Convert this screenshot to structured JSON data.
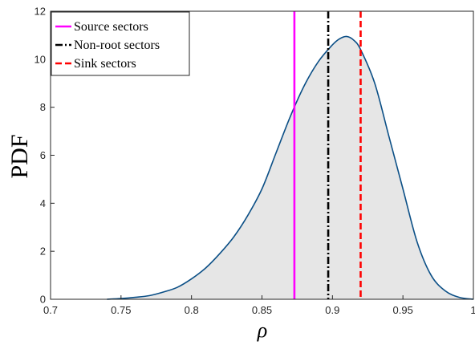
{
  "chart_data": {
    "type": "area",
    "xlabel": "ρ",
    "ylabel": "PDF",
    "xlim": [
      0.7,
      1.0
    ],
    "ylim": [
      0,
      12
    ],
    "x_ticks": [
      "0.7",
      "0.75",
      "0.8",
      "0.85",
      "0.9",
      "0.95",
      "1"
    ],
    "y_ticks": [
      "0",
      "2",
      "4",
      "6",
      "8",
      "10",
      "12"
    ],
    "grid": false,
    "legend_position": "top-left",
    "fill_color": "#e6e6e6",
    "curve_color": "#0b4f86",
    "pdf_curve": {
      "x": [
        0.74,
        0.75,
        0.76,
        0.77,
        0.78,
        0.79,
        0.8,
        0.81,
        0.82,
        0.83,
        0.84,
        0.85,
        0.86,
        0.87,
        0.88,
        0.89,
        0.9,
        0.905,
        0.91,
        0.915,
        0.92,
        0.93,
        0.94,
        0.95,
        0.96,
        0.97,
        0.98,
        0.99,
        1.0
      ],
      "y": [
        0.0,
        0.03,
        0.08,
        0.15,
        0.3,
        0.5,
        0.85,
        1.3,
        1.9,
        2.6,
        3.5,
        4.6,
        6.1,
        7.6,
        8.9,
        9.9,
        10.6,
        10.85,
        10.95,
        10.8,
        10.4,
        9.0,
        6.8,
        4.6,
        2.4,
        1.0,
        0.35,
        0.08,
        0.0
      ]
    },
    "series": [
      {
        "name": "Source sectors",
        "x": 0.873,
        "color": "#ff00ff",
        "style": "solid"
      },
      {
        "name": "Non-root sectors",
        "x": 0.897,
        "color": "#000000",
        "style": "dashdot"
      },
      {
        "name": "Sink sectors",
        "x": 0.92,
        "color": "#ff0000",
        "style": "dashed"
      }
    ]
  }
}
